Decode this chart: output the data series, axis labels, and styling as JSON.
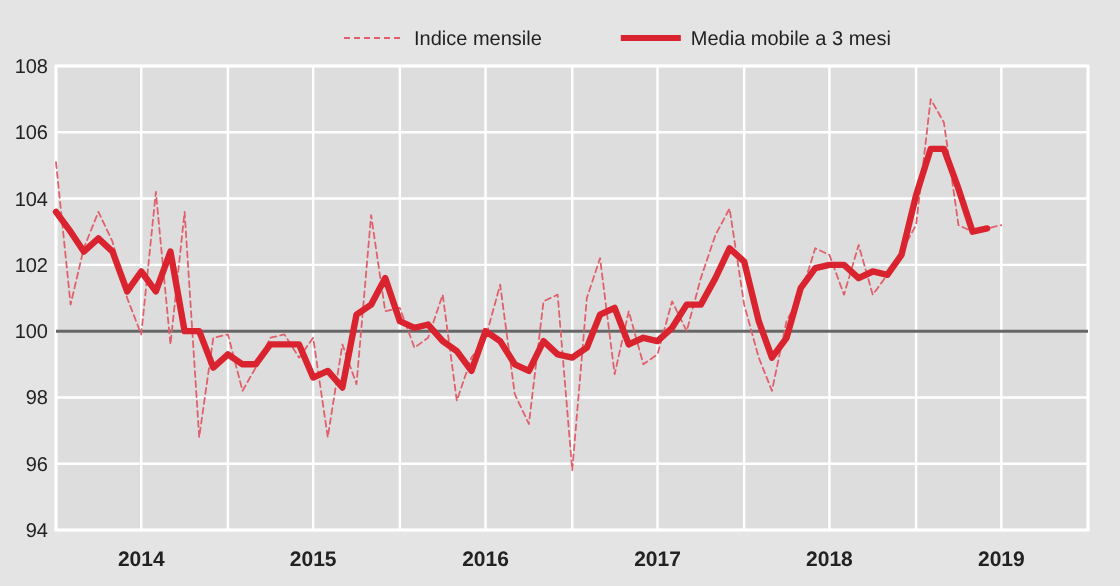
{
  "chart_data": {
    "type": "line",
    "x": [
      "2014-01",
      "2014-02",
      "2014-03",
      "2014-04",
      "2014-05",
      "2014-06",
      "2014-07",
      "2014-08",
      "2014-09",
      "2014-10",
      "2014-11",
      "2014-12",
      "2015-01",
      "2015-02",
      "2015-03",
      "2015-04",
      "2015-05",
      "2015-06",
      "2015-07",
      "2015-08",
      "2015-09",
      "2015-10",
      "2015-11",
      "2015-12",
      "2016-01",
      "2016-02",
      "2016-03",
      "2016-04",
      "2016-05",
      "2016-06",
      "2016-07",
      "2016-08",
      "2016-09",
      "2016-10",
      "2016-11",
      "2016-12",
      "2017-01",
      "2017-02",
      "2017-03",
      "2017-04",
      "2017-05",
      "2017-06",
      "2017-07",
      "2017-08",
      "2017-09",
      "2017-10",
      "2017-11",
      "2017-12",
      "2018-01",
      "2018-02",
      "2018-03",
      "2018-04",
      "2018-05",
      "2018-06",
      "2018-07",
      "2018-08",
      "2018-09",
      "2018-10",
      "2018-11",
      "2018-12",
      "2019-01",
      "2019-02",
      "2019-03",
      "2019-04",
      "2019-05",
      "2019-06",
      "2019-07"
    ],
    "series": [
      {
        "name": "Indice mensile",
        "color": "#e0606c",
        "line_style": "dashed",
        "values": [
          105.1,
          100.8,
          102.5,
          103.6,
          102.7,
          101.0,
          99.9,
          104.2,
          99.6,
          103.6,
          96.8,
          99.8,
          99.9,
          98.2,
          98.9,
          99.8,
          99.9,
          99.2,
          99.8,
          96.8,
          99.6,
          98.4,
          103.5,
          100.6,
          100.7,
          99.5,
          99.8,
          101.1,
          97.9,
          99.2,
          99.8,
          101.4,
          98.1,
          97.2,
          100.9,
          101.1,
          95.8,
          101.0,
          102.2,
          98.7,
          100.6,
          99.0,
          99.3,
          100.9,
          100.0,
          101.6,
          102.9,
          103.7,
          100.8,
          99.2,
          98.2,
          100.3,
          101.1,
          102.5,
          102.3,
          101.1,
          102.6,
          101.1,
          101.7,
          102.4,
          103.2,
          107.0,
          106.3,
          103.2,
          103.0,
          103.1,
          103.2
        ]
      },
      {
        "name": "Media mobile a 3 mesi",
        "color": "#d9232e",
        "line_style": "solid",
        "values": [
          103.6,
          103.0,
          102.4,
          102.8,
          102.4,
          101.2,
          101.8,
          101.2,
          102.4,
          100.0,
          100.0,
          98.9,
          99.3,
          99.0,
          99.0,
          99.6,
          99.6,
          99.6,
          98.6,
          98.8,
          98.3,
          100.5,
          100.8,
          101.6,
          100.3,
          100.1,
          100.2,
          99.7,
          99.4,
          98.8,
          100.0,
          99.7,
          99.0,
          98.8,
          99.7,
          99.3,
          99.2,
          99.5,
          100.5,
          100.7,
          99.6,
          99.8,
          99.7,
          100.1,
          100.8,
          100.8,
          101.6,
          102.5,
          102.1,
          100.3,
          99.2,
          99.8,
          101.3,
          101.9,
          102.0,
          102.0,
          101.6,
          101.8,
          101.7,
          102.3,
          104.1,
          105.5,
          105.5,
          104.3,
          103.0,
          103.1,
          null
        ]
      }
    ],
    "xlim": [
      "2014-01",
      "2020-01"
    ],
    "xticks": [
      {
        "value": "2014-01",
        "label": null
      },
      {
        "value": "2014-07",
        "label": "2014"
      },
      {
        "value": "2015-01",
        "label": null
      },
      {
        "value": "2015-07",
        "label": "2015"
      },
      {
        "value": "2016-01",
        "label": null
      },
      {
        "value": "2016-07",
        "label": "2016"
      },
      {
        "value": "2017-01",
        "label": null
      },
      {
        "value": "2017-07",
        "label": "2017"
      },
      {
        "value": "2018-01",
        "label": null
      },
      {
        "value": "2018-07",
        "label": "2018"
      },
      {
        "value": "2019-01",
        "label": null
      },
      {
        "value": "2019-07",
        "label": "2019"
      },
      {
        "value": "2020-01",
        "label": null
      }
    ],
    "ylim": [
      94,
      108
    ],
    "yticks": [
      94,
      96,
      98,
      100,
      102,
      104,
      106,
      108
    ],
    "grid": true,
    "legend": "top",
    "ref_lines": [
      {
        "axis": "y",
        "value": 100,
        "label": null,
        "color": "#666666"
      }
    ]
  }
}
